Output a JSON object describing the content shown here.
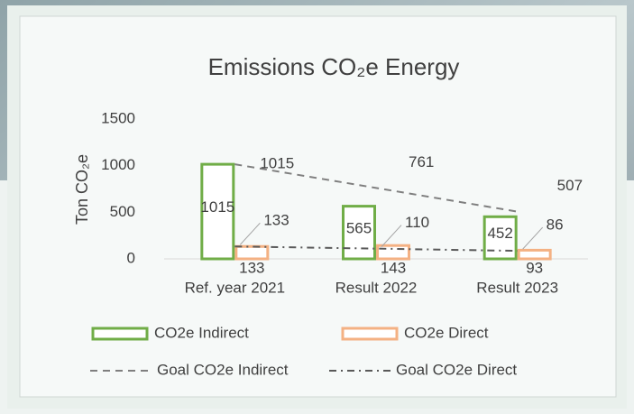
{
  "chart_data": {
    "type": "bar",
    "title": "Emissions CO₂e Energy",
    "y_label": "Ton CO₂e",
    "categories": [
      "Ref. year 2021",
      "Result 2022",
      "Result 2023"
    ],
    "series": [
      {
        "name": "CO2e Indirect",
        "type": "bar",
        "color": "#70ad47",
        "values": [
          1015,
          565,
          452
        ]
      },
      {
        "name": "CO2e Direct",
        "type": "bar",
        "color": "#f4b183",
        "values": [
          133,
          143,
          93
        ]
      },
      {
        "name": "Goal CO2e Indirect",
        "type": "line",
        "dash": "dashed",
        "color": "#7f7f7f",
        "values": [
          1015,
          761,
          507
        ]
      },
      {
        "name": "Goal CO2e Direct",
        "type": "line",
        "dash": "dash-dot",
        "color": "#595959",
        "values": [
          133,
          110,
          86
        ]
      }
    ],
    "ylim": [
      0,
      1500
    ],
    "yticks": [
      0,
      500,
      1000,
      1500
    ],
    "grid": false
  }
}
